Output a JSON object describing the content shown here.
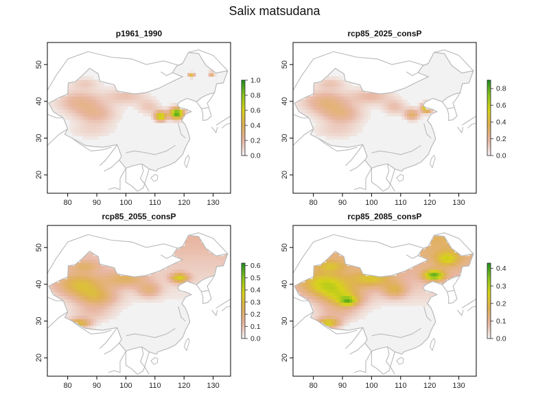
{
  "title": "Salix matsudana",
  "x_ticks": [
    "80",
    "90",
    "100",
    "110",
    "120",
    "130"
  ],
  "y_ticks": [
    "20",
    "30",
    "40",
    "50"
  ],
  "x_range": [
    73,
    136
  ],
  "y_range": [
    15,
    56
  ],
  "colors": {
    "background_land": "#f2f2f2",
    "border": "#b8b8b8",
    "scale": [
      "#f4f4f4",
      "#e8b6a2",
      "#dfb057",
      "#d8d21a",
      "#8cc41e",
      "#1e8e1e"
    ]
  },
  "panels": [
    {
      "title": "p1961_1990",
      "legend_ticks": [
        "0.0",
        "0.2",
        "0.4",
        "0.6",
        "0.8",
        "1.0"
      ],
      "legend_max": 1.0
    },
    {
      "title": "rcp85_2025_consP",
      "legend_ticks": [
        "0.0",
        "0.2",
        "0.4",
        "0.6",
        "0.8"
      ],
      "legend_max": 0.9
    },
    {
      "title": "rcp85_2055_consP",
      "legend_ticks": [
        "0.0",
        "0.1",
        "0.2",
        "0.3",
        "0.4",
        "0.5",
        "0.6"
      ],
      "legend_max": 0.62
    },
    {
      "title": "rcp85_2085_consP",
      "legend_ticks": [
        "0.0",
        "0.1",
        "0.2",
        "0.3",
        "0.4"
      ],
      "legend_max": 0.43
    }
  ]
}
